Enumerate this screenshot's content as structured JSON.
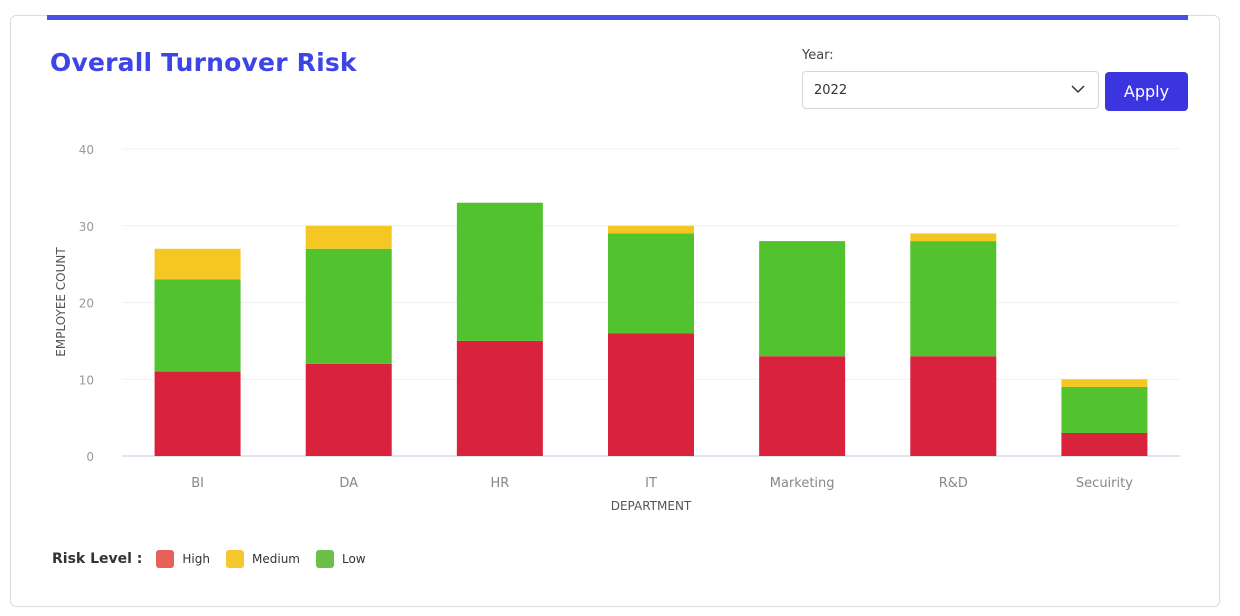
{
  "header": {
    "title": "Overall Turnover Risk"
  },
  "filter": {
    "year_label": "Year:",
    "year_value": "2022",
    "apply_label": "Apply"
  },
  "legend": {
    "label": "Risk Level :",
    "items": [
      {
        "name": "High",
        "color": "#e8605a"
      },
      {
        "name": "Medium",
        "color": "#f5c830"
      },
      {
        "name": "Low",
        "color": "#6cc04a"
      }
    ]
  },
  "accent_color": "#3d45e6",
  "chart_data": {
    "type": "bar",
    "stacked": true,
    "categories": [
      "BI",
      "DA",
      "HR",
      "IT",
      "Marketing",
      "R&D",
      "Secuirity"
    ],
    "series": [
      {
        "name": "High",
        "color": "#d9223b",
        "values": [
          11,
          12,
          15,
          16,
          13,
          13,
          3
        ]
      },
      {
        "name": "Low",
        "color": "#52c22e",
        "values": [
          12,
          15,
          18,
          13,
          15,
          15,
          6
        ]
      },
      {
        "name": "Medium",
        "color": "#f4c723",
        "values": [
          4,
          3,
          0,
          1,
          0,
          1,
          1
        ]
      }
    ],
    "xlabel": "DEPARTMENT",
    "ylabel": "EMPLOYEE COUNT",
    "ylim": [
      0,
      40
    ],
    "yticks": [
      "0",
      "10",
      "20",
      "30",
      "40"
    ],
    "grid": true,
    "legend_position": "bottom-left"
  }
}
